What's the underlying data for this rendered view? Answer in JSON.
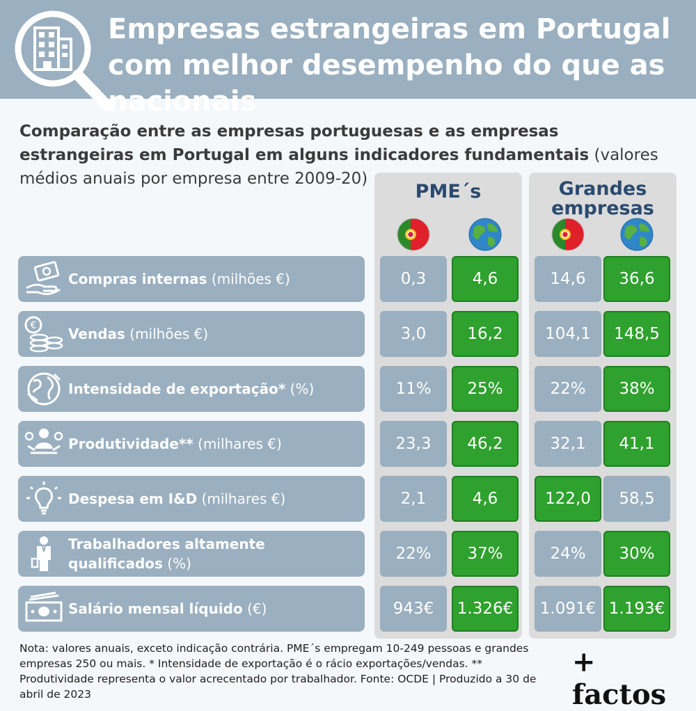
{
  "title": "Empresas estrangeiras em Portugal com melhor desempenho do que as nacionais",
  "subtitle_bold": "Comparação entre as empresas portuguesas e as empresas estrangeiras em Portugal em alguns indicadores fundamentais",
  "subtitle_rest": " (valores médios anuais por empresa entre 2009-20)",
  "colors": {
    "header": "#9aafbf",
    "higher": "#2fa12e",
    "lower": "#9aafbf",
    "group_title": "#2c4a6e",
    "panel": "#dcdcdc"
  },
  "chart_data": {
    "type": "table",
    "groups": [
      "PME´s",
      "Grandes empresas"
    ],
    "columns": [
      {
        "group": "PME´s",
        "flag": "portugal-flag-icon"
      },
      {
        "group": "PME´s",
        "flag": "globe-icon"
      },
      {
        "group": "Grandes empresas",
        "flag": "portugal-flag-icon"
      },
      {
        "group": "Grandes empresas",
        "flag": "globe-icon"
      }
    ],
    "rows": [
      {
        "label": "Compras internas",
        "unit": " (milhões €)",
        "icon": "money-hand-icon",
        "values": [
          "0,3",
          "4,6",
          "14,6",
          "36,6"
        ],
        "highlight": [
          false,
          true,
          false,
          true
        ]
      },
      {
        "label": "Vendas",
        "unit": " (milhões €)",
        "icon": "coins-icon",
        "values": [
          "3,0",
          "16,2",
          "104,1",
          "148,5"
        ],
        "highlight": [
          false,
          true,
          false,
          true
        ]
      },
      {
        "label": "Intensidade de exportação*",
        "unit": " (%)",
        "icon": "globe-arrows-icon",
        "values": [
          "11%",
          "25%",
          "22%",
          "38%"
        ],
        "highlight": [
          false,
          true,
          false,
          true
        ]
      },
      {
        "label": "Produtividade**",
        "unit": " (milhares €)",
        "icon": "productivity-icon",
        "values": [
          "23,3",
          "46,2",
          "32,1",
          "41,1"
        ],
        "highlight": [
          false,
          true,
          false,
          true
        ]
      },
      {
        "label": "Despesa em I&D",
        "unit": " (milhares €)",
        "icon": "lightbulb-icon",
        "values": [
          "2,1",
          "4,6",
          "122,0",
          "58,5"
        ],
        "highlight": [
          false,
          true,
          true,
          false
        ]
      },
      {
        "label": "Trabalhadores altamente qualificados",
        "unit": " (%)",
        "icon": "worker-icon",
        "values": [
          "22%",
          "37%",
          "24%",
          "30%"
        ],
        "highlight": [
          false,
          true,
          false,
          true
        ]
      },
      {
        "label": "Salário mensal líquido",
        "unit": " (€)",
        "icon": "banknotes-icon",
        "values": [
          "943€",
          "1.326€",
          "1.091€",
          "1.193€"
        ],
        "highlight": [
          false,
          true,
          false,
          true
        ]
      }
    ]
  },
  "note": "Nota: valores anuais, exceto indicação contrária. PME´s empregam 10-249 pessoas e grandes empresas 250 ou mais. * Intensidade de exportação é o rácio exportações/vendas. ** Produtividade representa o valor acrecentado por trabalhador. Fonte: OCDE | Produzido a 30 de abril de 2023",
  "brand": "+ factos"
}
